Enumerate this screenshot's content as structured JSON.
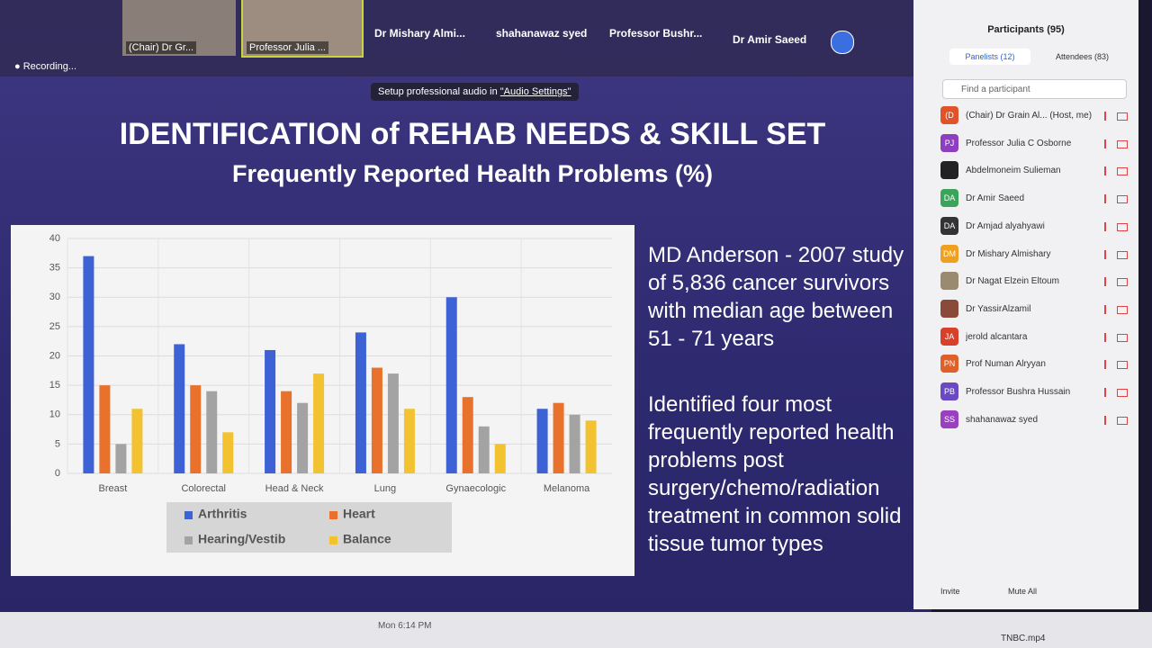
{
  "meeting": {
    "recording": "Recording...",
    "audio_hint": "Setup professional audio in",
    "audio_link": "\"Audio Settings\"",
    "videos": [
      "(Chair) Dr Gr...",
      "Professor Julia ..."
    ],
    "speakers": [
      "Dr Mishary Almi...",
      "shahanawaz syed",
      "Professor Bushr...",
      "Dr Amir Saeed"
    ]
  },
  "slide": {
    "title": "IDENTIFICATION of REHAB NEEDS & SKILL SET",
    "subtitle": "Frequently Reported Health Problems (%)",
    "paragraphs": [
      "MD Anderson - 2007 study of 5,836 cancer survivors with median age between 51 - 71 years",
      "Identified four most frequently reported health problems post surgery/chemo/radiation treatment in common solid tissue tumor types"
    ]
  },
  "chart_data": {
    "type": "bar",
    "categories": [
      "Breast",
      "Colorectal",
      "Head & Neck",
      "Lung",
      "Gynaecologic",
      "Melanoma"
    ],
    "series": [
      {
        "name": "Arthritis",
        "color": "#3d62d6",
        "values": [
          37,
          22,
          21,
          24,
          30,
          11
        ]
      },
      {
        "name": "Heart",
        "color": "#e8712b",
        "values": [
          15,
          15,
          14,
          18,
          13,
          12
        ]
      },
      {
        "name": "Hearing/Vestib",
        "color": "#a3a3a3",
        "values": [
          5,
          14,
          12,
          17,
          8,
          10
        ]
      },
      {
        "name": "Balance",
        "color": "#f2c230",
        "values": [
          11,
          7,
          17,
          11,
          5,
          9
        ]
      }
    ],
    "ylim": [
      0,
      40
    ],
    "yticks": [
      0,
      5,
      10,
      15,
      20,
      25,
      30,
      35,
      40
    ],
    "grid": true
  },
  "panel": {
    "title": "Participants (95)",
    "tabs": [
      "Panelists (12)",
      "Attendees (83)"
    ],
    "search": "Find a participant",
    "participants": [
      {
        "initials": "(D",
        "color": "#e0522a",
        "name": "(Chair) Dr Grain Al... (Host, me)"
      },
      {
        "initials": "PJ",
        "color": "#8e3fbf",
        "name": "Professor Julia C Osborne"
      },
      {
        "color": "#222222",
        "name": "Abdelmoneim Sulieman"
      },
      {
        "initials": "DA",
        "color": "#3aa55a",
        "name": "Dr Amir Saeed"
      },
      {
        "initials": "DA",
        "color": "#333333",
        "name": "Dr Amjad alyahyawi"
      },
      {
        "initials": "DM",
        "color": "#f0a020",
        "name": "Dr Mishary Almishary"
      },
      {
        "color": "#9a8a70",
        "name": "Dr Nagat Elzein Eltoum"
      },
      {
        "color": "#8a4a3a",
        "name": "Dr YassirAlzamil"
      },
      {
        "initials": "JA",
        "color": "#d8402a",
        "name": "jerold alcantara"
      },
      {
        "initials": "PN",
        "color": "#e0602a",
        "name": "Prof Numan Alryyan"
      },
      {
        "initials": "PB",
        "color": "#6a4ac0",
        "name": "Professor Bushra Hussain"
      },
      {
        "initials": "SS",
        "color": "#9a3fc0",
        "name": "shahanawaz syed"
      }
    ],
    "buttons": [
      "Invite",
      "Mute All"
    ]
  },
  "taskbar": {
    "clock": "Mon 6:14 PM",
    "file": "TNBC.mp4"
  }
}
